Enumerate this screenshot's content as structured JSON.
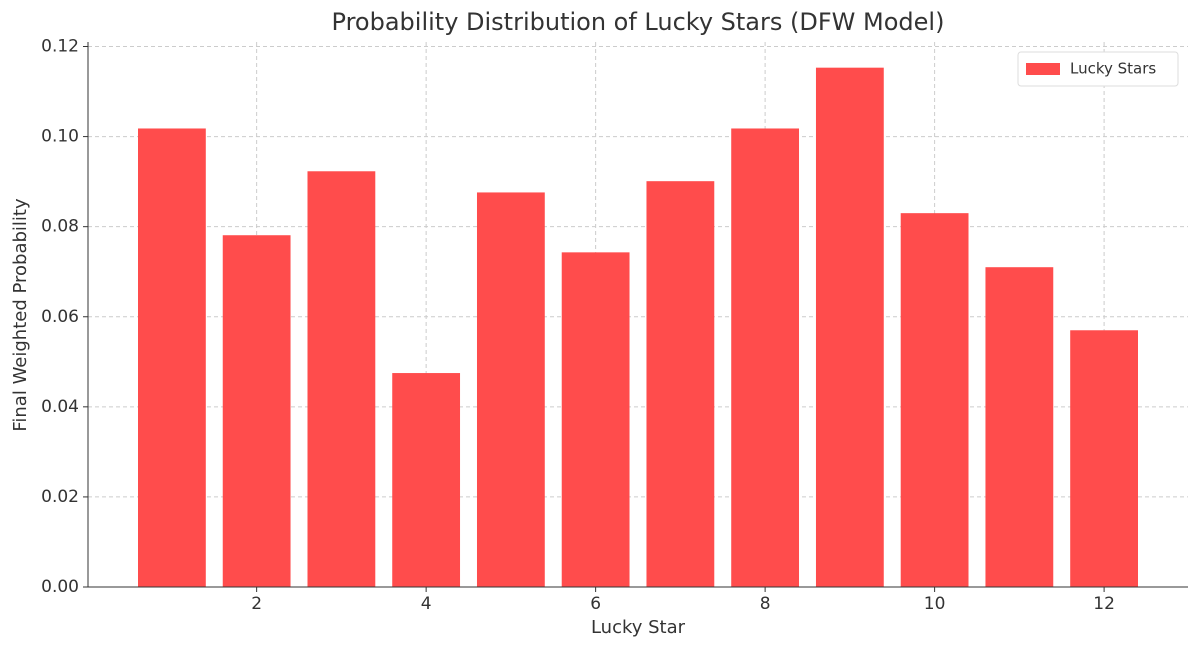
{
  "chart_data": {
    "type": "bar",
    "title": "Probability Distribution of Lucky Stars (DFW Model)",
    "xlabel": "Lucky Star",
    "ylabel": "Final Weighted Probability",
    "x": [
      1,
      2,
      3,
      4,
      5,
      6,
      7,
      8,
      9,
      10,
      11,
      12
    ],
    "series": [
      {
        "name": "Lucky Stars",
        "color": "#ff4c4c",
        "values": [
          0.1018,
          0.0781,
          0.0923,
          0.0475,
          0.0876,
          0.0743,
          0.0901,
          0.1018,
          0.1153,
          0.083,
          0.071,
          0.057
        ]
      }
    ],
    "xlim": [
      0.01,
      12.99
    ],
    "xticks": [
      2,
      4,
      6,
      8,
      10,
      12
    ],
    "ylim": [
      0,
      0.121
    ],
    "yticks": [
      {
        "value": 0,
        "label": "0.00"
      },
      {
        "value": 0.02,
        "label": "0.02"
      },
      {
        "value": 0.04,
        "label": "0.04"
      },
      {
        "value": 0.06,
        "label": "0.06"
      },
      {
        "value": 0.08,
        "label": "0.08"
      },
      {
        "value": 0.1,
        "label": "0.10"
      },
      {
        "value": 0.12,
        "label": "0.12"
      }
    ],
    "grid": true,
    "legend": "upper right"
  }
}
